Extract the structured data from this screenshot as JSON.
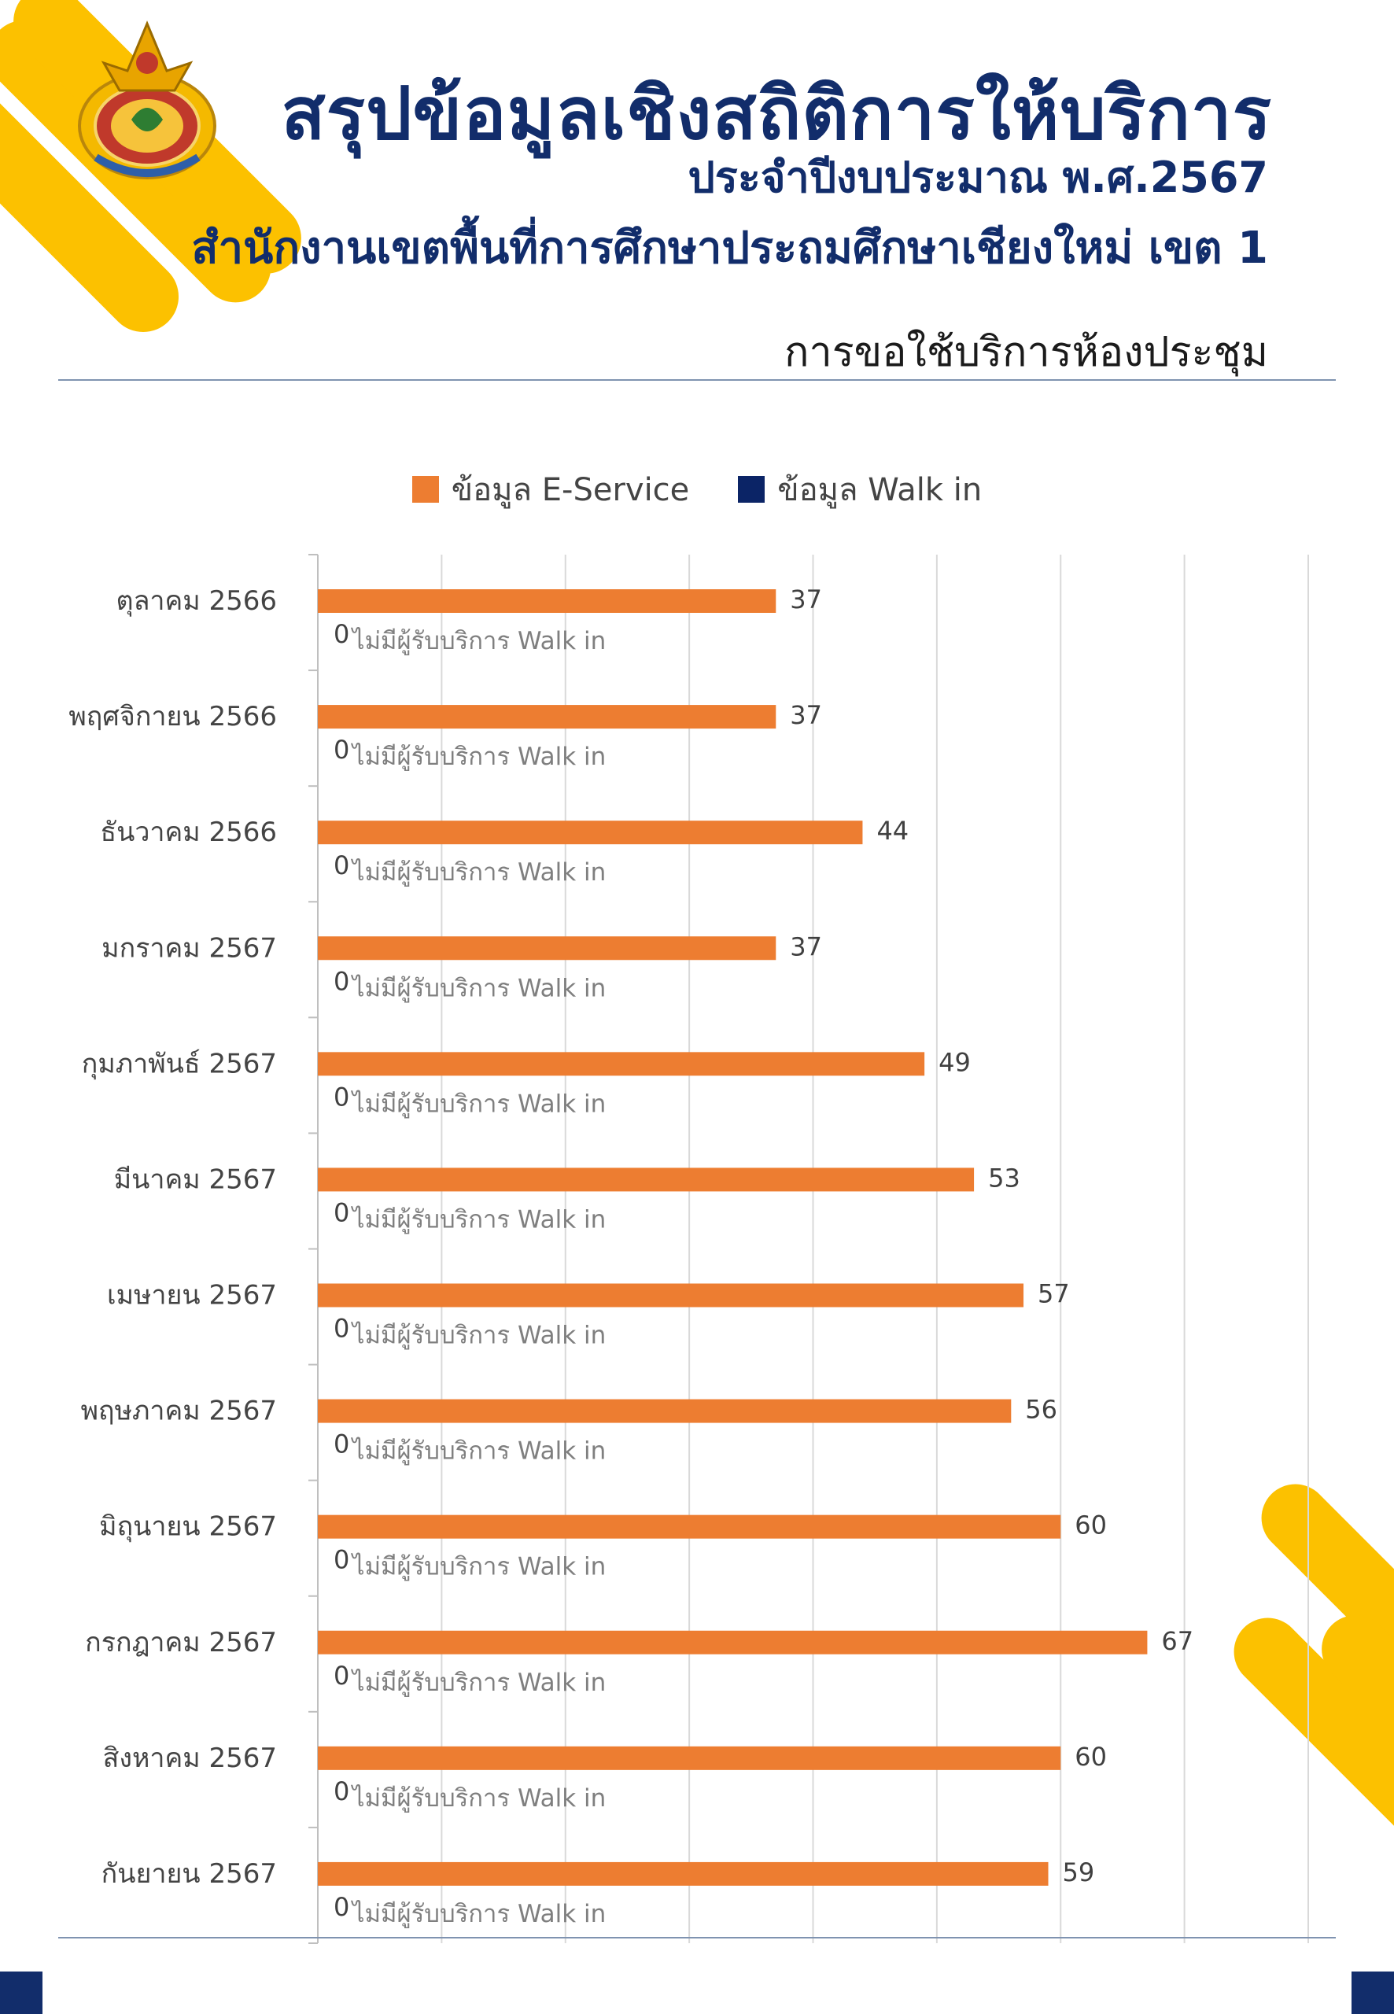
{
  "header": {
    "title": "สรุปข้อมูลเชิงสถิติการให้บริการ",
    "subtitle": "ประจำปีงบประมาณ พ.ศ.2567",
    "organization": "สำนักงานเขตพื้นที่การศึกษาประถมศึกษาเชียงใหม่ เขต 1",
    "section": "การขอใช้บริการห้องประชุม"
  },
  "logo": {
    "icon": "ministry-seal-icon",
    "caption": "สำนักงานเขตพื้นที่การศึกษาประถมศึกษาเชียงใหม่ เขต 1"
  },
  "colors": {
    "navy": "#122d6b",
    "gold": "#fcc100",
    "orange": "#ed7d31",
    "walkin": "#0b2466"
  },
  "chart_data": {
    "type": "bar",
    "orientation": "horizontal",
    "categories": [
      "ตุลาคม 2566",
      "พฤศจิกายน 2566",
      "ธันวาคม 2566",
      "มกราคม 2567",
      "กุมภาพันธ์ 2567",
      "มีนาคม 2567",
      "เมษายน 2567",
      "พฤษภาคม 2567",
      "มิถุนายน 2567",
      "กรกฎาคม 2567",
      "สิงหาคม 2567",
      "กันยายน 2567"
    ],
    "series": [
      {
        "name": "ข้อมูล E-Service",
        "values": [
          37,
          37,
          44,
          37,
          49,
          53,
          57,
          56,
          60,
          67,
          60,
          59
        ],
        "color": "#ed7d31"
      },
      {
        "name": "ข้อมูล Walk in",
        "values": [
          0,
          0,
          0,
          0,
          0,
          0,
          0,
          0,
          0,
          0,
          0,
          0
        ],
        "color": "#0b2466"
      }
    ],
    "walkin_annotation": "ไม่มีผู้รับบริการ Walk in",
    "xlim": [
      0,
      80
    ],
    "grid": true,
    "legend_position": "top"
  }
}
